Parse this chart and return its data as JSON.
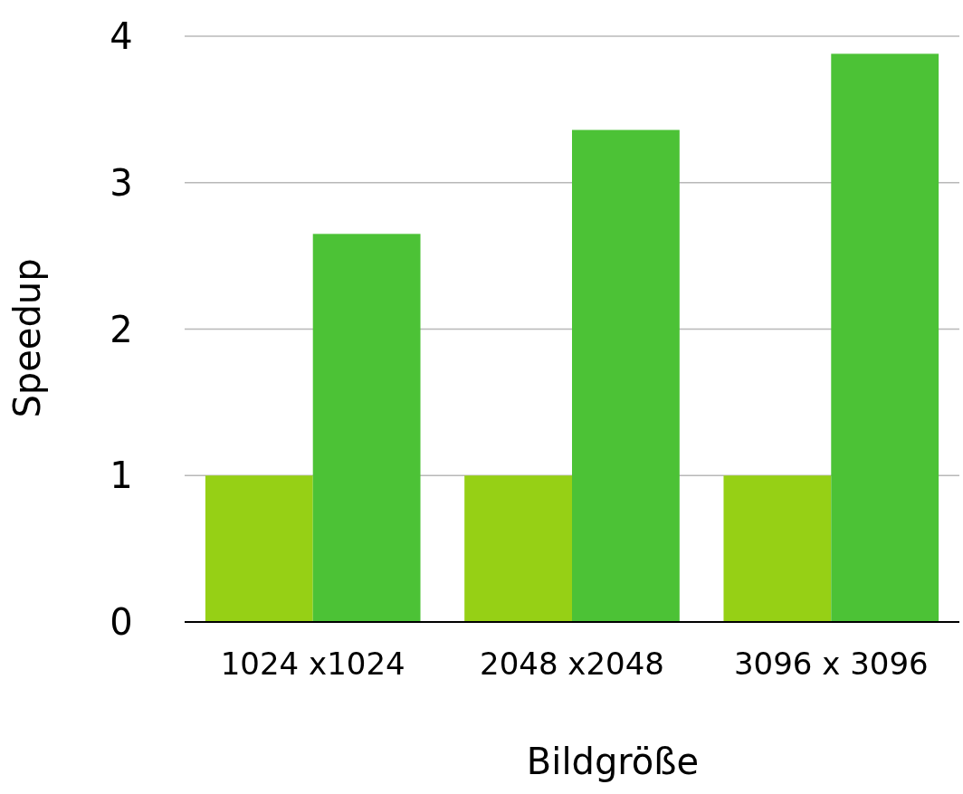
{
  "chart_data": {
    "type": "bar",
    "xlabel": "Bildgröße",
    "ylabel": "Speedup",
    "categories": [
      "1024 x1024",
      "2048 x2048",
      "3096 x 3096"
    ],
    "series": [
      {
        "color": "#96d015",
        "values": [
          1,
          1,
          1
        ]
      },
      {
        "color": "#4cc236",
        "values": [
          2.65,
          3.36,
          3.88
        ]
      }
    ],
    "ylim": [
      0,
      4
    ],
    "yticks": [
      0,
      1,
      2,
      3,
      4
    ],
    "grid": "y"
  }
}
